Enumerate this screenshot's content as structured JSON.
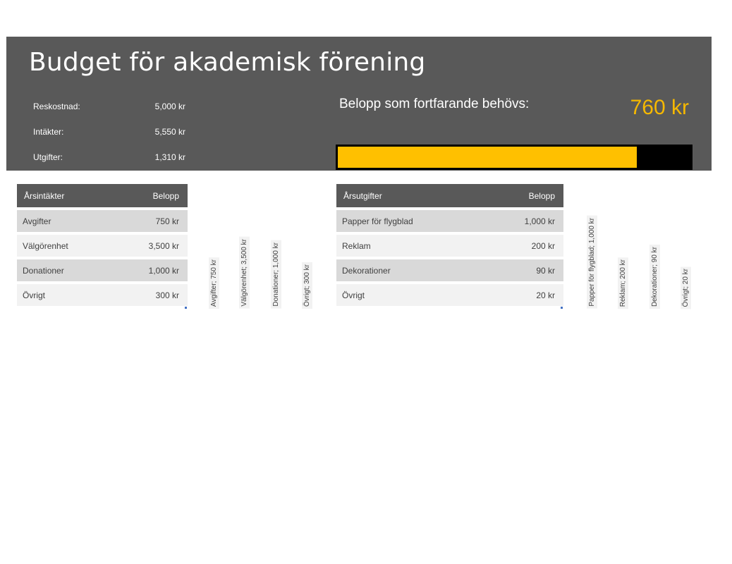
{
  "title": "Budget för akademisk förening",
  "summary": [
    {
      "label": "Reskostnad:",
      "value": "5,000 kr"
    },
    {
      "label": "Intäkter:",
      "value": "5,550 kr"
    },
    {
      "label": "Utgifter:",
      "value": "1,310 kr"
    }
  ],
  "needed": {
    "label": "Belopp som fortfarande behövs:",
    "value": "760 kr",
    "progress_fraction": 0.848
  },
  "colors": {
    "header_bg": "#595959",
    "accent": "#ffc000",
    "accent_text": "#f5b800",
    "progress_track": "#000000"
  },
  "income": {
    "headers": [
      "Årsintäkter",
      "Belopp"
    ],
    "rows": [
      {
        "name": "Avgifter",
        "amount": "750 kr"
      },
      {
        "name": "Välgörenhet",
        "amount": "3,500 kr"
      },
      {
        "name": "Donationer",
        "amount": "1,000 kr"
      },
      {
        "name": "Övrigt",
        "amount": "300 kr"
      }
    ],
    "chart_labels": [
      "Avgifter; 750 kr",
      "Välgörenhet; 3,500 kr",
      "Donationer; 1,000 kr",
      "Övrigt; 300 kr"
    ]
  },
  "expenses": {
    "headers": [
      "Årsutgifter",
      "Belopp"
    ],
    "rows": [
      {
        "name": "Papper för flygblad",
        "amount": "1,000 kr"
      },
      {
        "name": "Reklam",
        "amount": "200 kr"
      },
      {
        "name": "Dekorationer",
        "amount": "90 kr"
      },
      {
        "name": "Övrigt",
        "amount": "20 kr"
      }
    ],
    "chart_labels": [
      "Papper för flygblad; 1,000 kr",
      "Reklam; 200 kr",
      "Dekorationer; 90 kr",
      "Övrigt; 20 kr"
    ]
  }
}
